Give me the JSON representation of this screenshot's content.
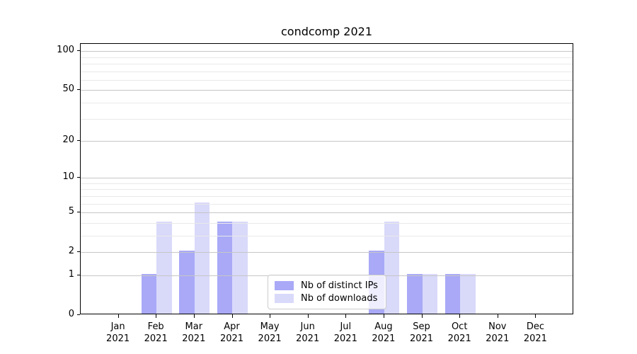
{
  "chart_data": {
    "type": "bar",
    "title": "condcomp 2021",
    "categories": [
      "Jan",
      "Feb",
      "Mar",
      "Apr",
      "May",
      "Jun",
      "Jul",
      "Aug",
      "Sep",
      "Oct",
      "Nov",
      "Dec"
    ],
    "year": "2021",
    "series": [
      {
        "name": "Nb of distinct IPs",
        "color": "#a9a9f7",
        "values": [
          0,
          1,
          2,
          4,
          0,
          0,
          0,
          2,
          1,
          1,
          0,
          0
        ]
      },
      {
        "name": "Nb of downloads",
        "color": "#d9d9fa",
        "values": [
          0,
          4,
          6,
          4,
          0,
          0,
          0,
          4,
          1,
          1,
          0,
          0
        ]
      }
    ],
    "xlabel": "",
    "ylabel": "",
    "yscale": "log1p",
    "ylim": [
      0,
      113.4
    ],
    "yticks": [
      0,
      1,
      2,
      5,
      10,
      20,
      50,
      100
    ],
    "minor_gridlines": [
      3,
      4,
      6,
      7,
      8,
      9,
      30,
      40,
      60,
      70,
      80,
      90
    ],
    "grid": "horizontal",
    "legend_position": "lower center"
  },
  "colors": {
    "axis": "#000000",
    "grid_major": "#c6c6c6",
    "grid_minor": "#e9e9e9",
    "legend_border": "#cccccc",
    "legend_bg": "rgba(255,255,255,0.8)"
  }
}
